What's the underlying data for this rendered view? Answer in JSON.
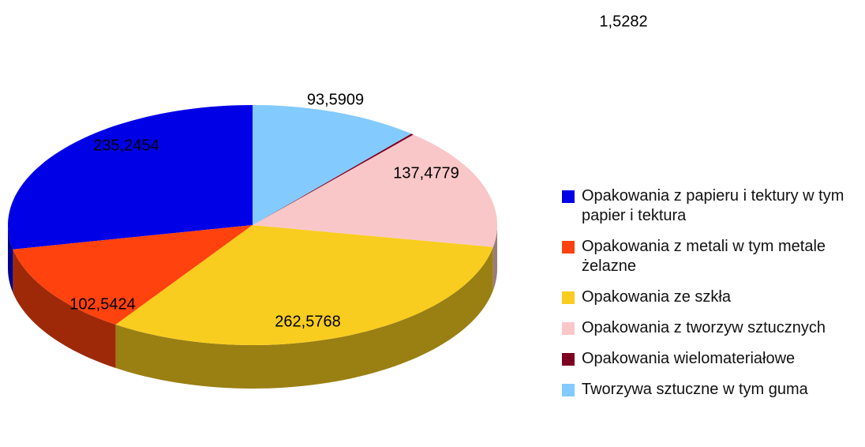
{
  "chart_data": {
    "type": "pie",
    "categories": [
      "Opakowania z papieru i tektury w tym papier i tektura",
      "Opakowania z metali w tym metale żelazne",
      "Opakowania ze szkła",
      "Opakowania z tworzyw sztucznych",
      "Opakowania wielomateriałowe",
      "Tworzywa sztuczne w tym guma"
    ],
    "values": [
      235.2454,
      102.5424,
      262.5768,
      137.4779,
      1.5282,
      93.5909
    ],
    "value_labels": [
      "235,2454",
      "102,5424",
      "262,5768",
      "137,4779",
      "1,5282",
      "93,5909"
    ],
    "colors": [
      "#0000e6",
      "#ff420e",
      "#f8cd1f",
      "#f9c7c8",
      "#7e0021",
      "#83caff"
    ],
    "legend": "right"
  }
}
